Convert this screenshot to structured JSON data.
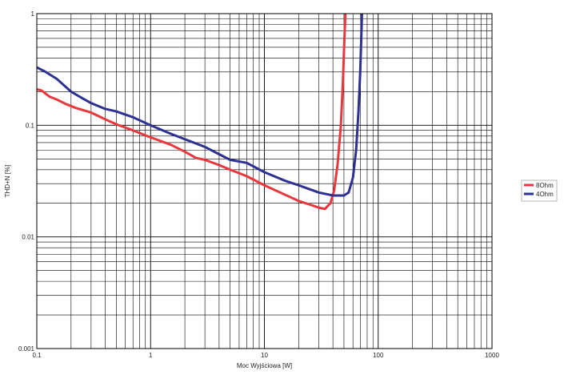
{
  "chart_data": {
    "type": "line",
    "xscale": "log",
    "yscale": "log",
    "xlim": [
      0.1,
      1000
    ],
    "ylim": [
      0.001,
      1
    ],
    "xlabel": "Moc Wyjściowa [W]",
    "ylabel": "THD+N [%]",
    "grid": true,
    "legend_position": "right",
    "x_ticks": [
      "0.1",
      "1",
      "10",
      "100",
      "1000"
    ],
    "y_ticks": [
      "0.001",
      "0.01",
      "0.1",
      "1"
    ],
    "series": [
      {
        "name": "8Ohm",
        "color": "#e8383d",
        "points": [
          [
            0.1,
            0.21
          ],
          [
            0.11,
            0.205
          ],
          [
            0.13,
            0.18
          ],
          [
            0.15,
            0.17
          ],
          [
            0.18,
            0.155
          ],
          [
            0.22,
            0.143
          ],
          [
            0.3,
            0.13
          ],
          [
            0.4,
            0.113
          ],
          [
            0.5,
            0.102
          ],
          [
            0.7,
            0.09
          ],
          [
            1.0,
            0.078
          ],
          [
            1.5,
            0.067
          ],
          [
            2.0,
            0.058
          ],
          [
            2.5,
            0.051
          ],
          [
            3.0,
            0.049
          ],
          [
            4.0,
            0.044
          ],
          [
            5.0,
            0.04
          ],
          [
            7.0,
            0.035
          ],
          [
            10.0,
            0.029
          ],
          [
            15.0,
            0.024
          ],
          [
            20.0,
            0.021
          ],
          [
            25.0,
            0.0195
          ],
          [
            30.0,
            0.0183
          ],
          [
            34.0,
            0.0178
          ],
          [
            38.0,
            0.02
          ],
          [
            41.0,
            0.026
          ],
          [
            44.0,
            0.045
          ],
          [
            47.0,
            0.1
          ],
          [
            49.0,
            0.25
          ],
          [
            50.5,
            0.6
          ],
          [
            51.5,
            1.0
          ]
        ]
      },
      {
        "name": "4Ohm",
        "color": "#2e3192",
        "points": [
          [
            0.1,
            0.33
          ],
          [
            0.12,
            0.3
          ],
          [
            0.15,
            0.26
          ],
          [
            0.2,
            0.2
          ],
          [
            0.25,
            0.175
          ],
          [
            0.3,
            0.158
          ],
          [
            0.4,
            0.14
          ],
          [
            0.5,
            0.133
          ],
          [
            0.7,
            0.118
          ],
          [
            1.0,
            0.1
          ],
          [
            1.5,
            0.084
          ],
          [
            2.0,
            0.075
          ],
          [
            3.0,
            0.064
          ],
          [
            4.0,
            0.055
          ],
          [
            5.0,
            0.049
          ],
          [
            7.0,
            0.046
          ],
          [
            10.0,
            0.038
          ],
          [
            15.0,
            0.032
          ],
          [
            20.0,
            0.029
          ],
          [
            30.0,
            0.025
          ],
          [
            40.0,
            0.0235
          ],
          [
            50.0,
            0.0235
          ],
          [
            55.0,
            0.025
          ],
          [
            60.0,
            0.034
          ],
          [
            64.0,
            0.06
          ],
          [
            67.0,
            0.13
          ],
          [
            69.5,
            0.3
          ],
          [
            71.0,
            0.6
          ],
          [
            72.0,
            1.0
          ]
        ]
      }
    ]
  }
}
